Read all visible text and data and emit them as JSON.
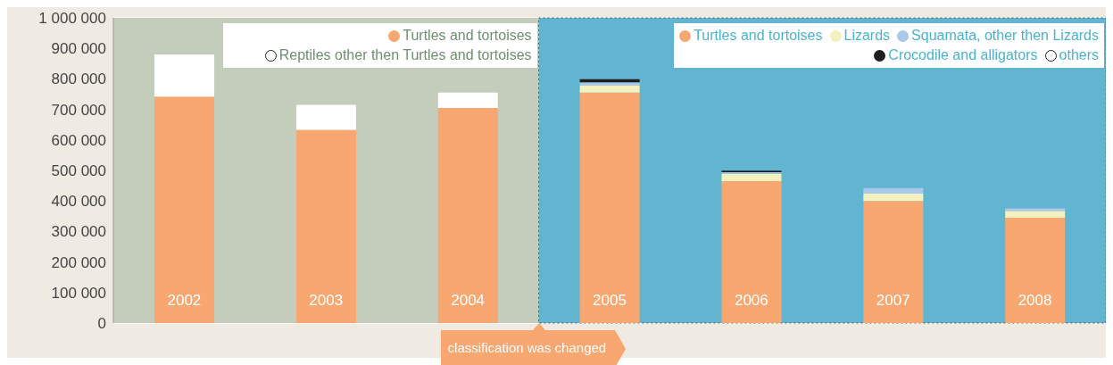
{
  "chart_data": {
    "type": "bar",
    "stacked": true,
    "categories": [
      "2002",
      "2003",
      "2004",
      "2005",
      "2006",
      "2007",
      "2008"
    ],
    "series": [
      {
        "name": "Turtles and tortoises",
        "color": "#f7a76f",
        "values": [
          742000,
          633000,
          705000,
          755000,
          465000,
          400000,
          345000
        ]
      },
      {
        "name": "Reptiles other then Turtles and tortoises",
        "color": "#ffffff",
        "values": [
          138000,
          82000,
          50000,
          null,
          null,
          null,
          null
        ]
      },
      {
        "name": "Lizards",
        "color": "#f4f1c0",
        "values": [
          null,
          null,
          null,
          24000,
          24000,
          24000,
          23000
        ]
      },
      {
        "name": "Squamata, other then Lizards",
        "color": "#a9c8ea",
        "values": [
          null,
          null,
          null,
          10000,
          5000,
          18000,
          8000
        ]
      },
      {
        "name": "Crocodile and alligators",
        "color": "#1e1e1e",
        "values": [
          null,
          null,
          null,
          10000,
          5000,
          null,
          null
        ]
      },
      {
        "name": "others",
        "color": "#ffffff",
        "values": [
          null,
          null,
          null,
          0,
          0,
          0,
          0
        ]
      }
    ],
    "ylim": [
      0,
      1000000
    ],
    "yticks": [
      0,
      100000,
      200000,
      300000,
      400000,
      500000,
      600000,
      700000,
      800000,
      900000,
      1000000
    ],
    "grid": "y",
    "legend": "top",
    "bands": [
      {
        "axis": "x",
        "from": "2002",
        "to": "2004",
        "color": "#c4ccbb"
      },
      {
        "axis": "x",
        "from": "2005",
        "to": "2008",
        "color": "#62b5d1"
      }
    ],
    "annotations": [
      "classification was changed"
    ]
  }
}
